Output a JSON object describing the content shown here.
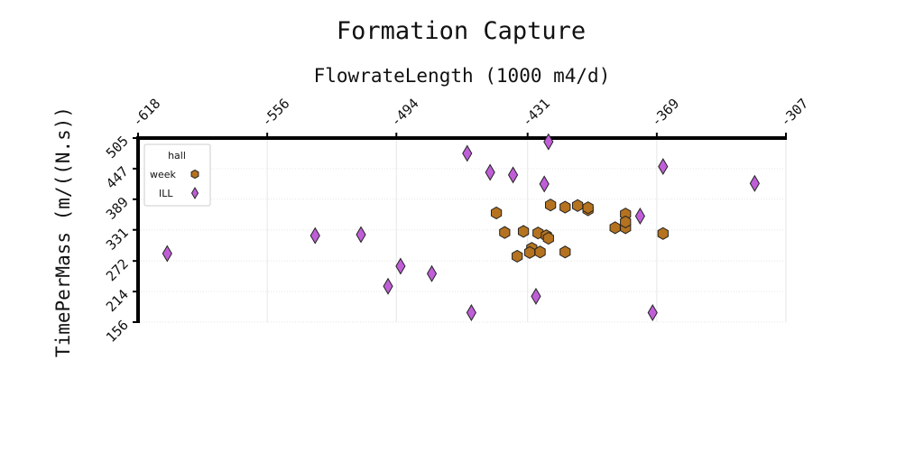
{
  "chart_data": {
    "type": "scatter",
    "title": "Formation Capture",
    "xlabel": "FlowrateLength (1000 m4/d)",
    "ylabel": "TimePerMass (m/((N.s))",
    "xlim": [
      -618,
      -307
    ],
    "ylim": [
      156,
      505
    ],
    "x_ticks": [
      "-618",
      "-556",
      "-494",
      "-431",
      "-369",
      "-307"
    ],
    "y_ticks": [
      "505",
      "447",
      "389",
      "331",
      "272",
      "214",
      "156"
    ],
    "x_tick_values": [
      -618,
      -556,
      -494,
      -431,
      -369,
      -307
    ],
    "y_tick_values": [
      505,
      447,
      389,
      331,
      272,
      214,
      156
    ],
    "x_axis_position": "top",
    "grid": true,
    "legend": {
      "title": "hall",
      "placement": "top-left"
    },
    "series": [
      {
        "name": "week",
        "marker": "hexagon",
        "color": "#b5731f",
        "points": [
          [
            -446,
            363
          ],
          [
            -442,
            326
          ],
          [
            -433,
            328
          ],
          [
            -426,
            325
          ],
          [
            -422,
            320
          ],
          [
            -421,
            315
          ],
          [
            -429,
            296
          ],
          [
            -436,
            281
          ],
          [
            -425,
            289
          ],
          [
            -402,
            369
          ],
          [
            -402,
            373
          ],
          [
            -389,
            335
          ],
          [
            -384,
            335
          ],
          [
            -413,
            374
          ],
          [
            -407,
            377
          ],
          [
            -384,
            361
          ],
          [
            -384,
            346
          ],
          [
            -413,
            289
          ],
          [
            -366,
            324
          ],
          [
            -430,
            288
          ],
          [
            -420,
            378
          ]
        ]
      },
      {
        "name": "ILL",
        "marker": "diamond",
        "color": "#c05ed8",
        "points": [
          [
            -421,
            498
          ],
          [
            -460,
            476
          ],
          [
            -449,
            440
          ],
          [
            -438,
            435
          ],
          [
            -423,
            418
          ],
          [
            -366,
            451
          ],
          [
            -322,
            419
          ],
          [
            -377,
            357
          ],
          [
            -533,
            320
          ],
          [
            -511,
            322
          ],
          [
            -604,
            286
          ],
          [
            -492,
            262
          ],
          [
            -477,
            248
          ],
          [
            -498,
            224
          ],
          [
            -458,
            174
          ],
          [
            -427,
            205
          ],
          [
            -371,
            174
          ]
        ]
      }
    ]
  }
}
